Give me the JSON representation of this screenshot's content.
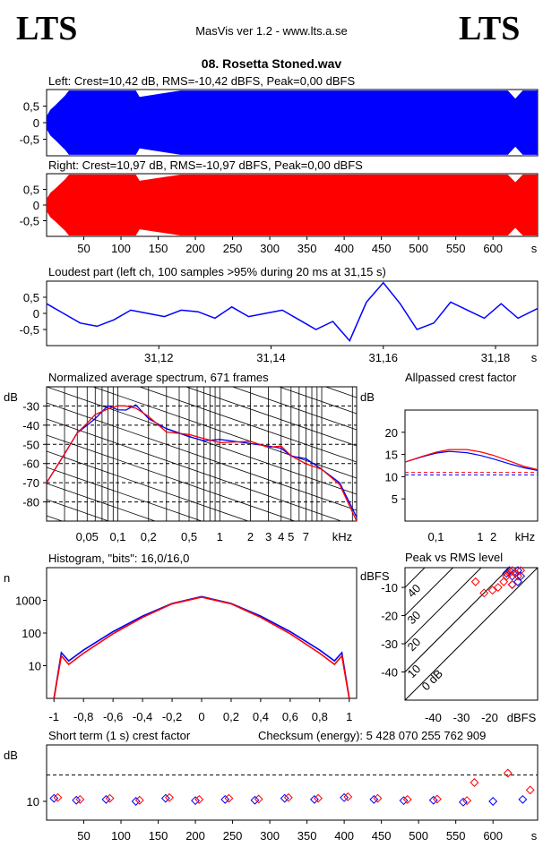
{
  "header": {
    "logo_left": "LTS",
    "logo_right": "LTS",
    "app_title": "MasVis ver 1.2 - www.lts.a.se",
    "file_name": "08. Rosetta Stoned.wav"
  },
  "colors": {
    "left": "#0000ff",
    "right": "#ff0000",
    "grid": "#000000"
  },
  "chart_data": [
    {
      "id": "waveform-left",
      "type": "area",
      "title": "Left: Crest=10,42 dB, RMS=-10,42 dBFS, Peak=0,00 dBFS",
      "ytick_labels": [
        "0,5",
        "0",
        "-0,5"
      ],
      "ylim": [
        -1,
        1
      ],
      "xlim": [
        0,
        660
      ],
      "envelope": {
        "t": [
          0,
          5,
          12,
          25,
          30,
          60,
          120,
          125,
          180,
          250,
          330,
          400,
          440,
          560,
          620,
          630,
          640,
          660
        ],
        "peak": [
          0.2,
          0.4,
          0.55,
          0.85,
          1,
          1,
          1,
          0.8,
          1,
          1,
          1,
          1,
          1,
          1,
          1,
          0.75,
          1,
          1
        ]
      },
      "series": [
        {
          "name": "Left",
          "color": "#0000ff"
        }
      ]
    },
    {
      "id": "waveform-right",
      "type": "area",
      "title": "Right: Crest=10,97 dB, RMS=-10,97 dBFS, Peak=0,00 dBFS",
      "ytick_labels": [
        "0,5",
        "0",
        "-0,5"
      ],
      "ylim": [
        -1,
        1
      ],
      "xlim": [
        0,
        660
      ],
      "xtick_labels": [
        "50",
        "100",
        "150",
        "200",
        "250",
        "300",
        "350",
        "400",
        "450",
        "500",
        "550",
        "600",
        "s"
      ],
      "xticks": [
        50,
        100,
        150,
        200,
        250,
        300,
        350,
        400,
        450,
        500,
        550,
        600
      ],
      "envelope": {
        "t": [
          0,
          5,
          12,
          25,
          30,
          60,
          120,
          125,
          180,
          250,
          330,
          400,
          440,
          560,
          620,
          630,
          640,
          660
        ],
        "peak": [
          0.2,
          0.4,
          0.55,
          0.85,
          1,
          1,
          1,
          0.8,
          1,
          1,
          1,
          1,
          1,
          1,
          1,
          0.75,
          1,
          1
        ]
      },
      "series": [
        {
          "name": "Right",
          "color": "#ff0000"
        }
      ]
    },
    {
      "id": "loudest-part",
      "type": "line",
      "title": "Loudest part (left  ch, 100 samples >95% during 20 ms at 31,15 s)",
      "ytick_labels": [
        "0,5",
        "0",
        "-0,5"
      ],
      "ylim": [
        -1,
        1
      ],
      "xlim": [
        31.1,
        31.1875
      ],
      "xtick_labels": [
        "31,12",
        "31,14",
        "31,16",
        "31,18",
        "s"
      ],
      "xticks": [
        31.12,
        31.14,
        31.16,
        31.18
      ],
      "x": [
        31.1,
        31.103,
        31.106,
        31.109,
        31.112,
        31.115,
        31.118,
        31.121,
        31.124,
        31.127,
        31.13,
        31.133,
        31.136,
        31.139,
        31.142,
        31.145,
        31.148,
        31.151,
        31.154,
        31.157,
        31.16,
        31.163,
        31.166,
        31.169,
        31.172,
        31.175,
        31.178,
        31.181,
        31.184,
        31.1875
      ],
      "y": [
        0.3,
        0.0,
        -0.3,
        -0.4,
        -0.2,
        0.1,
        0.0,
        -0.1,
        0.1,
        0.05,
        -0.15,
        0.2,
        -0.1,
        0.0,
        0.1,
        -0.2,
        -0.5,
        -0.25,
        -0.85,
        0.35,
        0.95,
        0.3,
        -0.5,
        -0.3,
        0.35,
        0.1,
        -0.15,
        0.3,
        -0.15,
        0.15
      ],
      "series": [
        {
          "name": "Left",
          "color": "#0000ff"
        }
      ]
    },
    {
      "id": "average-spectrum",
      "type": "line",
      "title": "Normalized average spectrum, 671 frames",
      "ylabel": "dB",
      "xlabel": "kHz",
      "ytick_labels": [
        "-30",
        "-40",
        "-50",
        "-60",
        "-70",
        "-80"
      ],
      "yticks": [
        -30,
        -40,
        -50,
        -60,
        -70,
        -80
      ],
      "ylim": [
        -90,
        -20
      ],
      "xlim": [
        0.02,
        22
      ],
      "xtick_labels": [
        "0,05",
        "0,1",
        "0,2",
        "0,5",
        "1",
        "2",
        "3",
        "4",
        "5",
        "7",
        "kHz"
      ],
      "xticks": [
        0.05,
        0.1,
        0.2,
        0.5,
        1,
        2,
        3,
        4,
        5,
        7
      ],
      "x": [
        0.02,
        0.03,
        0.04,
        0.05,
        0.06,
        0.08,
        0.1,
        0.12,
        0.15,
        0.2,
        0.3,
        0.5,
        0.7,
        1,
        2,
        3,
        4,
        5,
        7,
        10,
        15,
        22
      ],
      "series": [
        {
          "name": "Left",
          "color": "#0000ff",
          "values": [
            -70,
            -55,
            -44,
            -40,
            -36,
            -31,
            -32,
            -31,
            -30,
            -36,
            -43,
            -46,
            -47,
            -48,
            -49,
            -52,
            -52,
            -55,
            -58,
            -63,
            -70,
            -88
          ]
        },
        {
          "name": "Right",
          "color": "#ff0000",
          "values": [
            -70,
            -55,
            -44,
            -39,
            -35,
            -31,
            -31,
            -30,
            -30,
            -36,
            -43,
            -46,
            -47,
            -48,
            -49,
            -51,
            -52,
            -56,
            -59,
            -63,
            -71,
            -90
          ]
        }
      ]
    },
    {
      "id": "allpassed-crest",
      "type": "line",
      "title": "Allpassed crest factor",
      "ylabel": "dB",
      "xlabel": "kHz",
      "ytick_labels": [
        "20",
        "15",
        "10",
        "5"
      ],
      "yticks": [
        20,
        15,
        10,
        5
      ],
      "ylim": [
        0,
        25
      ],
      "xlim": [
        0.02,
        20
      ],
      "xtick_labels": [
        "0,1",
        "1",
        "2",
        "kHz"
      ],
      "xticks": [
        0.1,
        1,
        2
      ],
      "x": [
        0.02,
        0.05,
        0.1,
        0.2,
        0.5,
        1,
        2,
        5,
        10,
        20
      ],
      "series": [
        {
          "name": "Left",
          "color": "#0000ff",
          "values": [
            13.3,
            14.5,
            15.3,
            15.7,
            15.4,
            14.8,
            14,
            12.8,
            12,
            11.4
          ]
        },
        {
          "name": "Right",
          "color": "#ff0000",
          "values": [
            13.3,
            14.6,
            15.5,
            16.1,
            16.1,
            15.6,
            14.8,
            13.4,
            12.3,
            11.6
          ]
        }
      ],
      "reference_lines": [
        {
          "name": "Left",
          "value": 10.42,
          "color": "#0000ff"
        },
        {
          "name": "Right",
          "value": 10.97,
          "color": "#ff0000"
        }
      ]
    },
    {
      "id": "histogram",
      "type": "line",
      "title": "Histogram, \"bits\": 16,0/16,0",
      "ylabel": "n",
      "ytick_labels": [
        "1000",
        "100",
        "10"
      ],
      "yticks": [
        1000,
        100,
        10
      ],
      "ylim": [
        1,
        10000
      ],
      "xlim": [
        -1.05,
        1.05
      ],
      "xtick_labels": [
        "-1",
        "-0,8",
        "-0,6",
        "-0,4",
        "-0,2",
        "0",
        "0,2",
        "0,4",
        "0,6",
        "0,8",
        "1"
      ],
      "xticks": [
        -1,
        -0.8,
        -0.6,
        -0.4,
        -0.2,
        0,
        0.2,
        0.4,
        0.6,
        0.8,
        1
      ],
      "x": [
        -1,
        -0.95,
        -0.9,
        -0.8,
        -0.6,
        -0.4,
        -0.2,
        0,
        0.2,
        0.4,
        0.6,
        0.8,
        0.9,
        0.95,
        1
      ],
      "series": [
        {
          "name": "Left",
          "color": "#0000ff",
          "values": [
            1,
            25,
            14,
            30,
            110,
            330,
            800,
            1300,
            800,
            330,
            110,
            30,
            14,
            25,
            1
          ]
        },
        {
          "name": "Right",
          "color": "#ff0000",
          "values": [
            1,
            20,
            11,
            24,
            95,
            300,
            780,
            1250,
            780,
            300,
            95,
            24,
            11,
            20,
            1
          ]
        }
      ]
    },
    {
      "id": "peak-vs-rms",
      "type": "scatter",
      "title": "Peak vs RMS level",
      "ylabel": "dBFS",
      "xlabel": "dBFS",
      "ytick_labels": [
        "-10",
        "-20",
        "-30",
        "-40"
      ],
      "yticks": [
        -10,
        -20,
        -30,
        -40
      ],
      "ylim": [
        -50,
        -3
      ],
      "xlim": [
        -50,
        -3
      ],
      "xtick_labels": [
        "-40",
        "-30",
        "-20",
        "dBFS"
      ],
      "xticks": [
        -40,
        -30,
        -20
      ],
      "diagonal_labels": [
        "40",
        "30",
        "20",
        "10",
        "0 dB"
      ],
      "diagonal_offsets": [
        40,
        30,
        20,
        10,
        0
      ],
      "series": [
        {
          "name": "Left",
          "color": "#0000ff",
          "x": [
            -14,
            -13,
            -12,
            -11,
            -10,
            -9,
            -12,
            -10
          ],
          "y": [
            -5,
            -4,
            -6,
            -5,
            -4,
            -6,
            -9,
            -8
          ]
        },
        {
          "name": "Right",
          "color": "#ff0000",
          "x": [
            -14,
            -13,
            -12,
            -11,
            -10,
            -9,
            -15,
            -12,
            -17,
            -22,
            -25,
            -19
          ],
          "y": [
            -6,
            -5,
            -4,
            -5,
            -6,
            -4,
            -8,
            -9,
            -10,
            -12,
            -8,
            -11
          ]
        }
      ]
    },
    {
      "id": "short-term-crest",
      "type": "scatter",
      "title": "Short term (1 s) crest factor",
      "checksum_label": "Checksum (energy):  5 428 070 255 762 909",
      "ylabel": "dB",
      "ytick_labels": [
        "10"
      ],
      "yticks": [
        10
      ],
      "ylim": [
        5,
        25
      ],
      "xlim": [
        0,
        660
      ],
      "xtick_labels": [
        "50",
        "100",
        "150",
        "200",
        "250",
        "300",
        "350",
        "400",
        "450",
        "500",
        "550",
        "600",
        "s"
      ],
      "xticks": [
        50,
        100,
        150,
        200,
        250,
        300,
        350,
        400,
        450,
        500,
        550,
        600
      ],
      "reference_value": 17,
      "series": [
        {
          "name": "Left",
          "color": "#0000ff",
          "x": [
            10,
            40,
            80,
            120,
            160,
            200,
            240,
            280,
            320,
            360,
            400,
            440,
            480,
            520,
            560,
            600,
            640
          ],
          "y": [
            10.8,
            10.3,
            10.5,
            10,
            10.8,
            10.2,
            10.5,
            10.3,
            10.8,
            10.5,
            11,
            10.5,
            10.2,
            10.3,
            9.8,
            10,
            10.5
          ]
        },
        {
          "name": "Right",
          "color": "#ff0000",
          "x": [
            15,
            45,
            85,
            125,
            165,
            205,
            245,
            285,
            325,
            365,
            405,
            445,
            485,
            525,
            565,
            575,
            620,
            650
          ],
          "y": [
            11,
            10.5,
            10.8,
            10.3,
            11,
            10.5,
            10.8,
            10.6,
            11,
            10.8,
            11.2,
            10.8,
            10.5,
            10.6,
            10.2,
            15,
            17.5,
            13
          ]
        }
      ]
    }
  ]
}
